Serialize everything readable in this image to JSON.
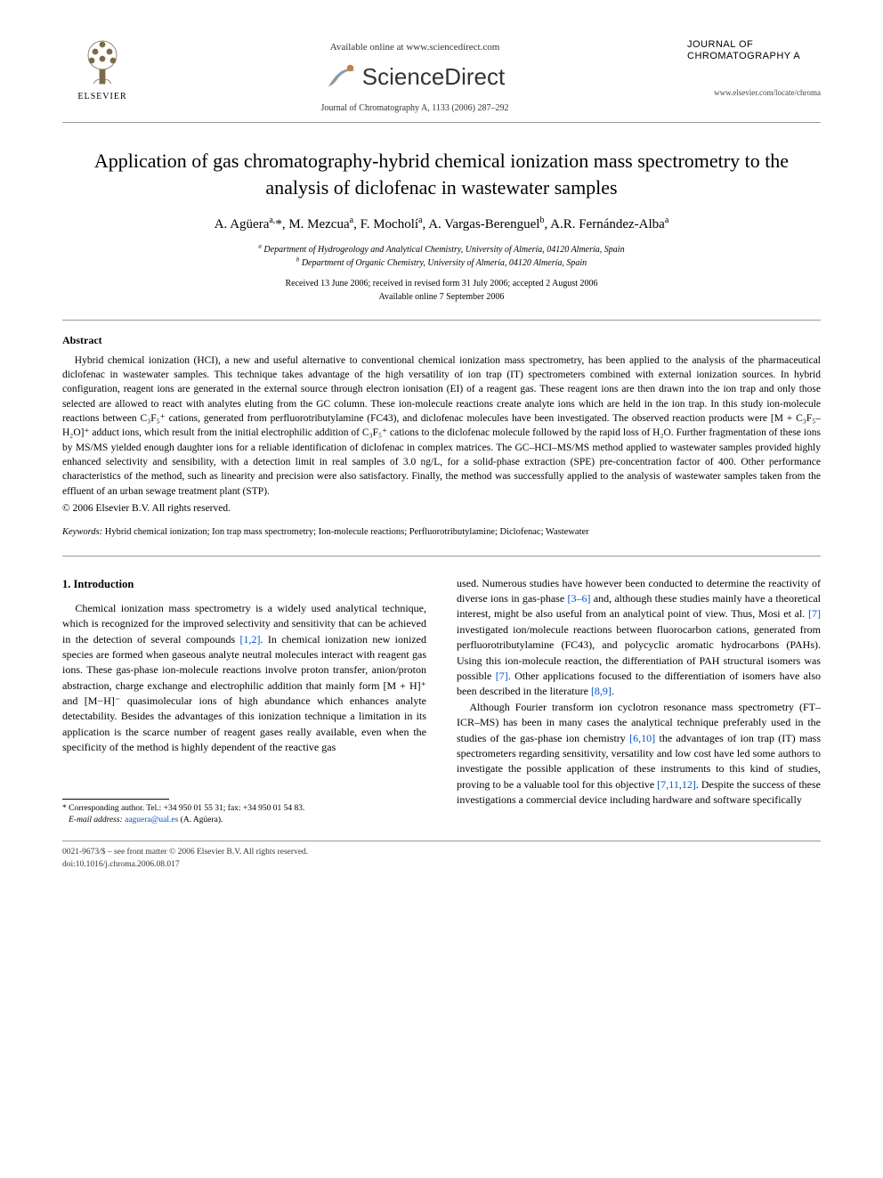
{
  "header": {
    "available_online": "Available online at www.sciencedirect.com",
    "sciencedirect": "ScienceDirect",
    "elsevier_label": "ELSEVIER",
    "journal_line": "Journal of Chromatography A, 1133 (2006) 287–292",
    "journal_name_1": "JOURNAL OF",
    "journal_name_2": "CHROMATOGRAPHY A",
    "journal_url": "www.elsevier.com/locate/chroma"
  },
  "title": "Application of gas chromatography-hybrid chemical ionization mass spectrometry to the analysis of diclofenac in wastewater samples",
  "authors_html": "A. Agüera<sup>a,</sup>*, M. Mezcua<sup>a</sup>, F. Mocholí<sup>a</sup>, A. Vargas-Berenguel<sup>b</sup>, A.R. Fernández-Alba<sup>a</sup>",
  "affiliations": {
    "a": "Department of Hydrogeology and Analytical Chemistry, University of Almería, 04120 Almería, Spain",
    "b": "Department of Organic Chemistry, University of Almería, 04120 Almería, Spain"
  },
  "dates": {
    "received": "Received 13 June 2006; received in revised form 31 July 2006; accepted 2 August 2006",
    "available": "Available online 7 September 2006"
  },
  "abstract": {
    "heading": "Abstract",
    "body": "Hybrid chemical ionization (HCI), a new and useful alternative to conventional chemical ionization mass spectrometry, has been applied to the analysis of the pharmaceutical diclofenac in wastewater samples. This technique takes advantage of the high versatility of ion trap (IT) spectrometers combined with external ionization sources. In hybrid configuration, reagent ions are generated in the external source through electron ionisation (EI) of a reagent gas. These reagent ions are then drawn into the ion trap and only those selected are allowed to react with analytes eluting from the GC column. These ion-molecule reactions create analyte ions which are held in the ion trap. In this study ion-molecule reactions between C₃F₅⁺ cations, generated from perfluorotributylamine (FC43), and diclofenac molecules have been investigated. The observed reaction products were [M + C₃F₅–H₂O]⁺ adduct ions, which result from the initial electrophilic addition of C₃F₅⁺ cations to the diclofenac molecule followed by the rapid loss of H₂O. Further fragmentation of these ions by MS/MS yielded enough daughter ions for a reliable identification of diclofenac in complex matrices. The GC–HCI–MS/MS method applied to wastewater samples provided highly enhanced selectivity and sensibility, with a detection limit in real samples of 3.0 ng/L, for a solid-phase extraction (SPE) pre-concentration factor of 400. Other performance characteristics of the method, such as linearity and precision were also satisfactory. Finally, the method was successfully applied to the analysis of wastewater samples taken from the effluent of an urban sewage treatment plant (STP).",
    "copyright": "© 2006 Elsevier B.V. All rights reserved."
  },
  "keywords": {
    "label": "Keywords:",
    "text": "Hybrid chemical ionization; Ion trap mass spectrometry; Ion-molecule reactions; Perfluorotributylamine; Diclofenac; Wastewater"
  },
  "intro": {
    "heading": "1. Introduction",
    "col1_p1_a": "Chemical ionization mass spectrometry is a widely used analytical technique, which is recognized for the improved selectivity and sensitivity that can be achieved in the detection of several compounds ",
    "ref_1_2": "[1,2]",
    "col1_p1_b": ". In chemical ionization new ionized species are formed when gaseous analyte neutral molecules interact with reagent gas ions. These gas-phase ion-molecule reactions involve proton transfer, anion/proton abstraction, charge exchange and electrophilic addition that mainly form [M + H]⁺ and [M−H]⁻ quasimolecular ions of high abundance which enhances analyte detectability. Besides the advantages of this ionization technique a limitation in its application is the scarce number of reagent gases really available, even when the specificity of the method is highly dependent of the reactive gas",
    "col2_p1_a": "used. Numerous studies have however been conducted to determine the reactivity of diverse ions in gas-phase ",
    "ref_3_6": "[3–6]",
    "col2_p1_b": " and, although these studies mainly have a theoretical interest, might be also useful from an analytical point of view. Thus, Mosi et al. ",
    "ref_7a": "[7]",
    "col2_p1_c": " investigated ion/molecule reactions between fluorocarbon cations, generated from perfluorotributylamine (FC43), and polycyclic aromatic hydrocarbons (PAHs). Using this ion-molecule reaction, the differentiation of PAH structural isomers was possible ",
    "ref_7b": "[7]",
    "col2_p1_d": ". Other applications focused to the differentiation of isomers have also been described in the literature ",
    "ref_8_9": "[8,9]",
    "col2_p1_e": ".",
    "col2_p2_a": "Although Fourier transform ion cyclotron resonance mass spectrometry (FT–ICR–MS) has been in many cases the analytical technique preferably used in the studies of the gas-phase ion chemistry ",
    "ref_6_10": "[6,10]",
    "col2_p2_b": " the advantages of ion trap (IT) mass spectrometers regarding sensitivity, versatility and low cost have led some authors to investigate the possible application of these instruments to this kind of studies, proving to be a valuable tool for this objective ",
    "ref_7_11_12": "[7,11,12]",
    "col2_p2_c": ". Despite the success of these investigations a commercial device including hardware and software specifically"
  },
  "footnote": {
    "corr": "* Corresponding author. Tel.: +34 950 01 55 31; fax: +34 950 01 54 83.",
    "email_label": "E-mail address:",
    "email": "aaguera@ual.es",
    "email_name": "(A. Agüera)."
  },
  "footer": {
    "issn": "0021-9673/$ – see front matter © 2006 Elsevier B.V. All rights reserved.",
    "doi": "doi:10.1016/j.chroma.2006.08.017"
  },
  "colors": {
    "link": "#0055cc",
    "rule": "#999999",
    "text": "#000000",
    "bg": "#ffffff"
  },
  "typography": {
    "title_fontsize": 22,
    "authors_fontsize": 15,
    "body_fontsize": 12,
    "abstract_fontsize": 11.5,
    "footnote_fontsize": 9.5
  }
}
